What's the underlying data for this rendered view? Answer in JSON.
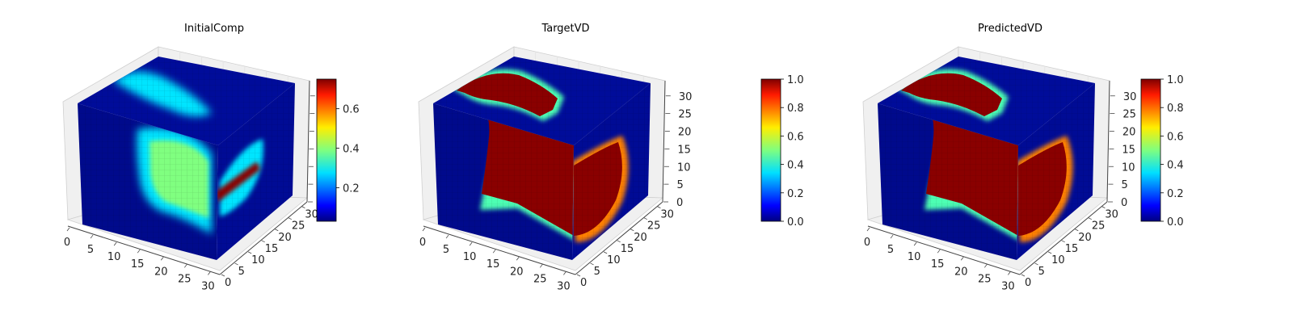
{
  "chart_data": [
    {
      "type": "heatmap",
      "subtype": "3d-voxel-cube",
      "title": "InitialComp",
      "colormap": "jet",
      "grid": true,
      "legend": "colorbar right",
      "xlim": [
        0,
        32
      ],
      "ylim": [
        0,
        32
      ],
      "zlim": [
        0,
        32
      ],
      "x_ticks": [
        "0",
        "5",
        "10",
        "15",
        "20",
        "25",
        "30"
      ],
      "y_ticks": [
        "0",
        "5",
        "10",
        "15",
        "20",
        "25",
        "30"
      ],
      "z_ticks": [],
      "colorbar": {
        "min": 0.03,
        "max": 0.75,
        "ticks": [
          "0.2",
          "0.4",
          "0.6"
        ]
      }
    },
    {
      "type": "heatmap",
      "subtype": "3d-voxel-cube",
      "title": "TargetVD",
      "colormap": "jet",
      "grid": true,
      "legend": "colorbar right",
      "xlim": [
        0,
        32
      ],
      "ylim": [
        0,
        32
      ],
      "zlim": [
        0,
        32
      ],
      "x_ticks": [
        "0",
        "5",
        "10",
        "15",
        "20",
        "25",
        "30"
      ],
      "y_ticks": [
        "0",
        "5",
        "10",
        "15",
        "20",
        "25",
        "30"
      ],
      "z_ticks": [
        "0",
        "5",
        "10",
        "15",
        "20",
        "25",
        "30"
      ],
      "colorbar": {
        "min": 0.0,
        "max": 1.0,
        "ticks": [
          "0.0",
          "0.2",
          "0.4",
          "0.6",
          "0.8",
          "1.0"
        ]
      }
    },
    {
      "type": "heatmap",
      "subtype": "3d-voxel-cube",
      "title": "PredictedVD",
      "colormap": "jet",
      "grid": true,
      "legend": "colorbar right",
      "xlim": [
        0,
        32
      ],
      "ylim": [
        0,
        32
      ],
      "zlim": [
        0,
        32
      ],
      "x_ticks": [
        "0",
        "5",
        "10",
        "15",
        "20",
        "25",
        "30"
      ],
      "y_ticks": [
        "0",
        "5",
        "10",
        "15",
        "20",
        "25",
        "30"
      ],
      "z_ticks": [
        "0",
        "5",
        "10",
        "15",
        "20",
        "25",
        "30"
      ],
      "colorbar": {
        "min": 0.0,
        "max": 1.0,
        "ticks": [
          "0.0",
          "0.2",
          "0.4",
          "0.6",
          "0.8",
          "1.0"
        ]
      }
    }
  ]
}
